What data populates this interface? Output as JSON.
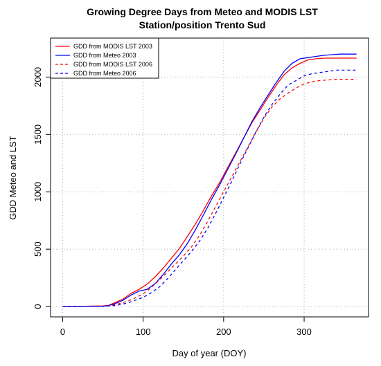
{
  "chart_data": {
    "type": "line",
    "title": "Growing Degree Days from Meteo and MODIS LST",
    "subtitle": "Station/position Trento Sud",
    "xlabel": "Day of year (DOY)",
    "ylabel": "GDD Meteo and LST",
    "xlim": [
      -15,
      380
    ],
    "ylim": [
      -90,
      2340
    ],
    "xticks": [
      0,
      100,
      200,
      300
    ],
    "yticks": [
      0,
      500,
      1000,
      1500,
      2000
    ],
    "grid": true,
    "legend_position": "top-left",
    "series": [
      {
        "name": "GDD from MODIS LST 2003",
        "color": "#ff0000",
        "dash": "solid",
        "x": [
          0,
          50,
          57,
          65,
          75,
          85,
          95,
          105,
          115,
          125,
          135,
          145,
          155,
          165,
          175,
          185,
          195,
          205,
          215,
          225,
          235,
          245,
          255,
          265,
          275,
          285,
          295,
          305,
          315,
          325,
          335,
          345,
          365
        ],
        "y": [
          0,
          5,
          10,
          35,
          65,
          115,
          150,
          195,
          260,
          335,
          420,
          505,
          610,
          720,
          840,
          965,
          1080,
          1210,
          1340,
          1470,
          1600,
          1710,
          1820,
          1925,
          2020,
          2080,
          2120,
          2150,
          2160,
          2165,
          2165,
          2165,
          2165
        ]
      },
      {
        "name": "GDD from Meteo 2003",
        "color": "#0000ff",
        "dash": "solid",
        "x": [
          0,
          50,
          57,
          65,
          75,
          85,
          95,
          105,
          115,
          125,
          135,
          145,
          155,
          165,
          175,
          185,
          195,
          205,
          215,
          225,
          235,
          245,
          255,
          265,
          275,
          285,
          295,
          305,
          315,
          325,
          335,
          345,
          365
        ],
        "y": [
          0,
          3,
          8,
          25,
          55,
          100,
          135,
          150,
          200,
          280,
          370,
          450,
          550,
          670,
          800,
          935,
          1060,
          1195,
          1330,
          1470,
          1610,
          1730,
          1840,
          1950,
          2050,
          2120,
          2160,
          2170,
          2180,
          2190,
          2195,
          2200,
          2200
        ]
      },
      {
        "name": "GDD from MODIS LST 2006",
        "color": "#ff0000",
        "dash": "dashed",
        "x": [
          0,
          50,
          60,
          70,
          80,
          90,
          100,
          110,
          120,
          130,
          140,
          150,
          160,
          170,
          180,
          190,
          200,
          210,
          220,
          230,
          240,
          250,
          260,
          270,
          280,
          290,
          300,
          310,
          320,
          330,
          340,
          350,
          365
        ],
        "y": [
          0,
          2,
          8,
          25,
          45,
          75,
          110,
          165,
          230,
          300,
          370,
          440,
          520,
          620,
          740,
          870,
          1000,
          1130,
          1260,
          1390,
          1520,
          1640,
          1740,
          1810,
          1860,
          1905,
          1940,
          1960,
          1970,
          1975,
          1980,
          1980,
          1980
        ]
      },
      {
        "name": "GDD from Meteo 2006",
        "color": "#0000ff",
        "dash": "dashed",
        "x": [
          0,
          50,
          60,
          70,
          80,
          90,
          100,
          110,
          120,
          130,
          140,
          150,
          160,
          170,
          180,
          190,
          200,
          210,
          220,
          230,
          240,
          250,
          260,
          270,
          280,
          290,
          300,
          310,
          320,
          330,
          340,
          350,
          365
        ],
        "y": [
          0,
          2,
          5,
          15,
          30,
          55,
          80,
          120,
          170,
          240,
          320,
          400,
          480,
          570,
          680,
          810,
          950,
          1090,
          1240,
          1380,
          1520,
          1650,
          1760,
          1850,
          1930,
          1970,
          2010,
          2030,
          2040,
          2050,
          2060,
          2060,
          2060
        ]
      }
    ]
  }
}
